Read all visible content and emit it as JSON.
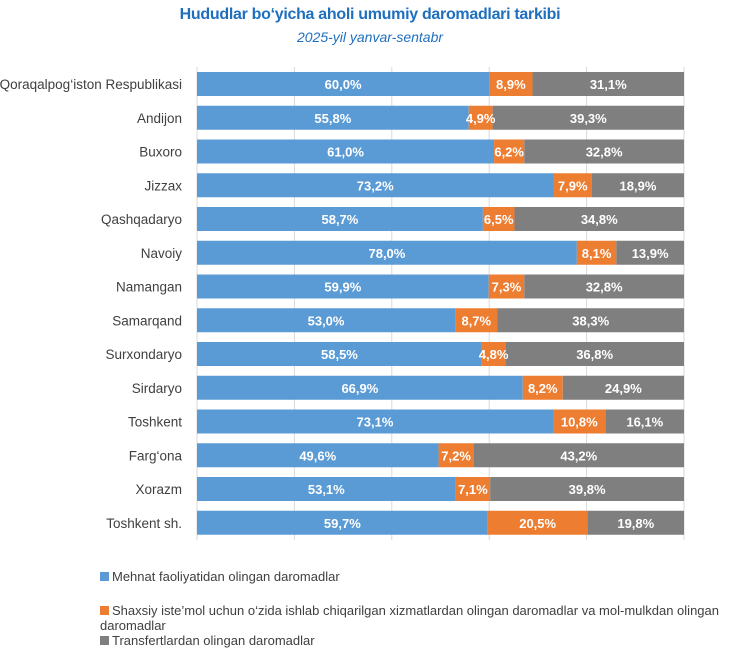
{
  "chart_data": {
    "type": "bar",
    "orientation": "horizontal",
    "stacked": "percent",
    "title": "Hududlar bo‘yicha aholi umumiy daromadlari tarkibi",
    "subtitle": "2025-yil yanvar-sentabr",
    "xlabel": "",
    "ylabel": "",
    "xlim": [
      0,
      100
    ],
    "grid": true,
    "legend_position": "bottom-left",
    "categories": [
      "Qoraqalpog‘iston Respublikasi",
      "Andijon",
      "Buxoro",
      "Jizzax",
      "Qashqadaryo",
      "Navoiy",
      "Namangan",
      "Samarqand",
      "Surxondaryo",
      "Sirdaryo",
      "Toshkent",
      "Farg‘ona",
      "Xorazm",
      "Toshkent sh."
    ],
    "series": [
      {
        "name": "Mehnat faoliyatidan olingan daromadlar",
        "color": "#5b9bd5",
        "values": [
          60.0,
          55.8,
          61.0,
          73.2,
          58.7,
          78.0,
          59.9,
          53.0,
          58.5,
          66.9,
          73.1,
          49.6,
          53.1,
          59.7
        ],
        "labels": [
          "60,0%",
          "55,8%",
          "61,0%",
          "73,2%",
          "58,7%",
          "78,0%",
          "59,9%",
          "53,0%",
          "58,5%",
          "66,9%",
          "73,1%",
          "49,6%",
          "53,1%",
          "59,7%"
        ]
      },
      {
        "name": "Shaxsiy iste’mol uchun o‘zida ishlab chiqarilgan xizmatlardan olingan daromadlar va mol-mulkdan olingan daromadlar",
        "color": "#ed7d31",
        "values": [
          8.9,
          4.9,
          6.2,
          7.9,
          6.5,
          8.1,
          7.3,
          8.7,
          4.8,
          8.2,
          10.8,
          7.2,
          7.1,
          20.5
        ],
        "labels": [
          "8,9%",
          "4,9%",
          "6,2%",
          "7,9%",
          "6,5%",
          "8,1%",
          "7,3%",
          "8,7%",
          "4,8%",
          "8,2%",
          "10,8%",
          "7,2%",
          "7,1%",
          "20,5%"
        ]
      },
      {
        "name": "Transfertlardan olingan daromadlar",
        "color": "#7f7f7f",
        "values": [
          31.1,
          39.3,
          32.8,
          18.9,
          34.8,
          13.9,
          32.8,
          38.3,
          36.8,
          24.9,
          16.1,
          43.2,
          39.8,
          19.8
        ],
        "labels": [
          "31,1%",
          "39,3%",
          "32,8%",
          "18,9%",
          "34,8%",
          "13,9%",
          "32,8%",
          "38,3%",
          "36,8%",
          "24,9%",
          "16,1%",
          "43,2%",
          "39,8%",
          "19,8%"
        ]
      }
    ]
  },
  "legend": {
    "items": [
      {
        "label": "Mehnat faoliyatidan olingan daromadlar",
        "color": "#5b9bd5"
      },
      {
        "label": "Shaxsiy iste’mol uchun o‘zida ishlab chiqarilgan xizmatlardan olingan daromadlar va mol-mulkdan olingan daromadlar",
        "color": "#ed7d31"
      },
      {
        "label": "Transfertlardan olingan daromadlar",
        "color": "#7f7f7f"
      }
    ]
  }
}
